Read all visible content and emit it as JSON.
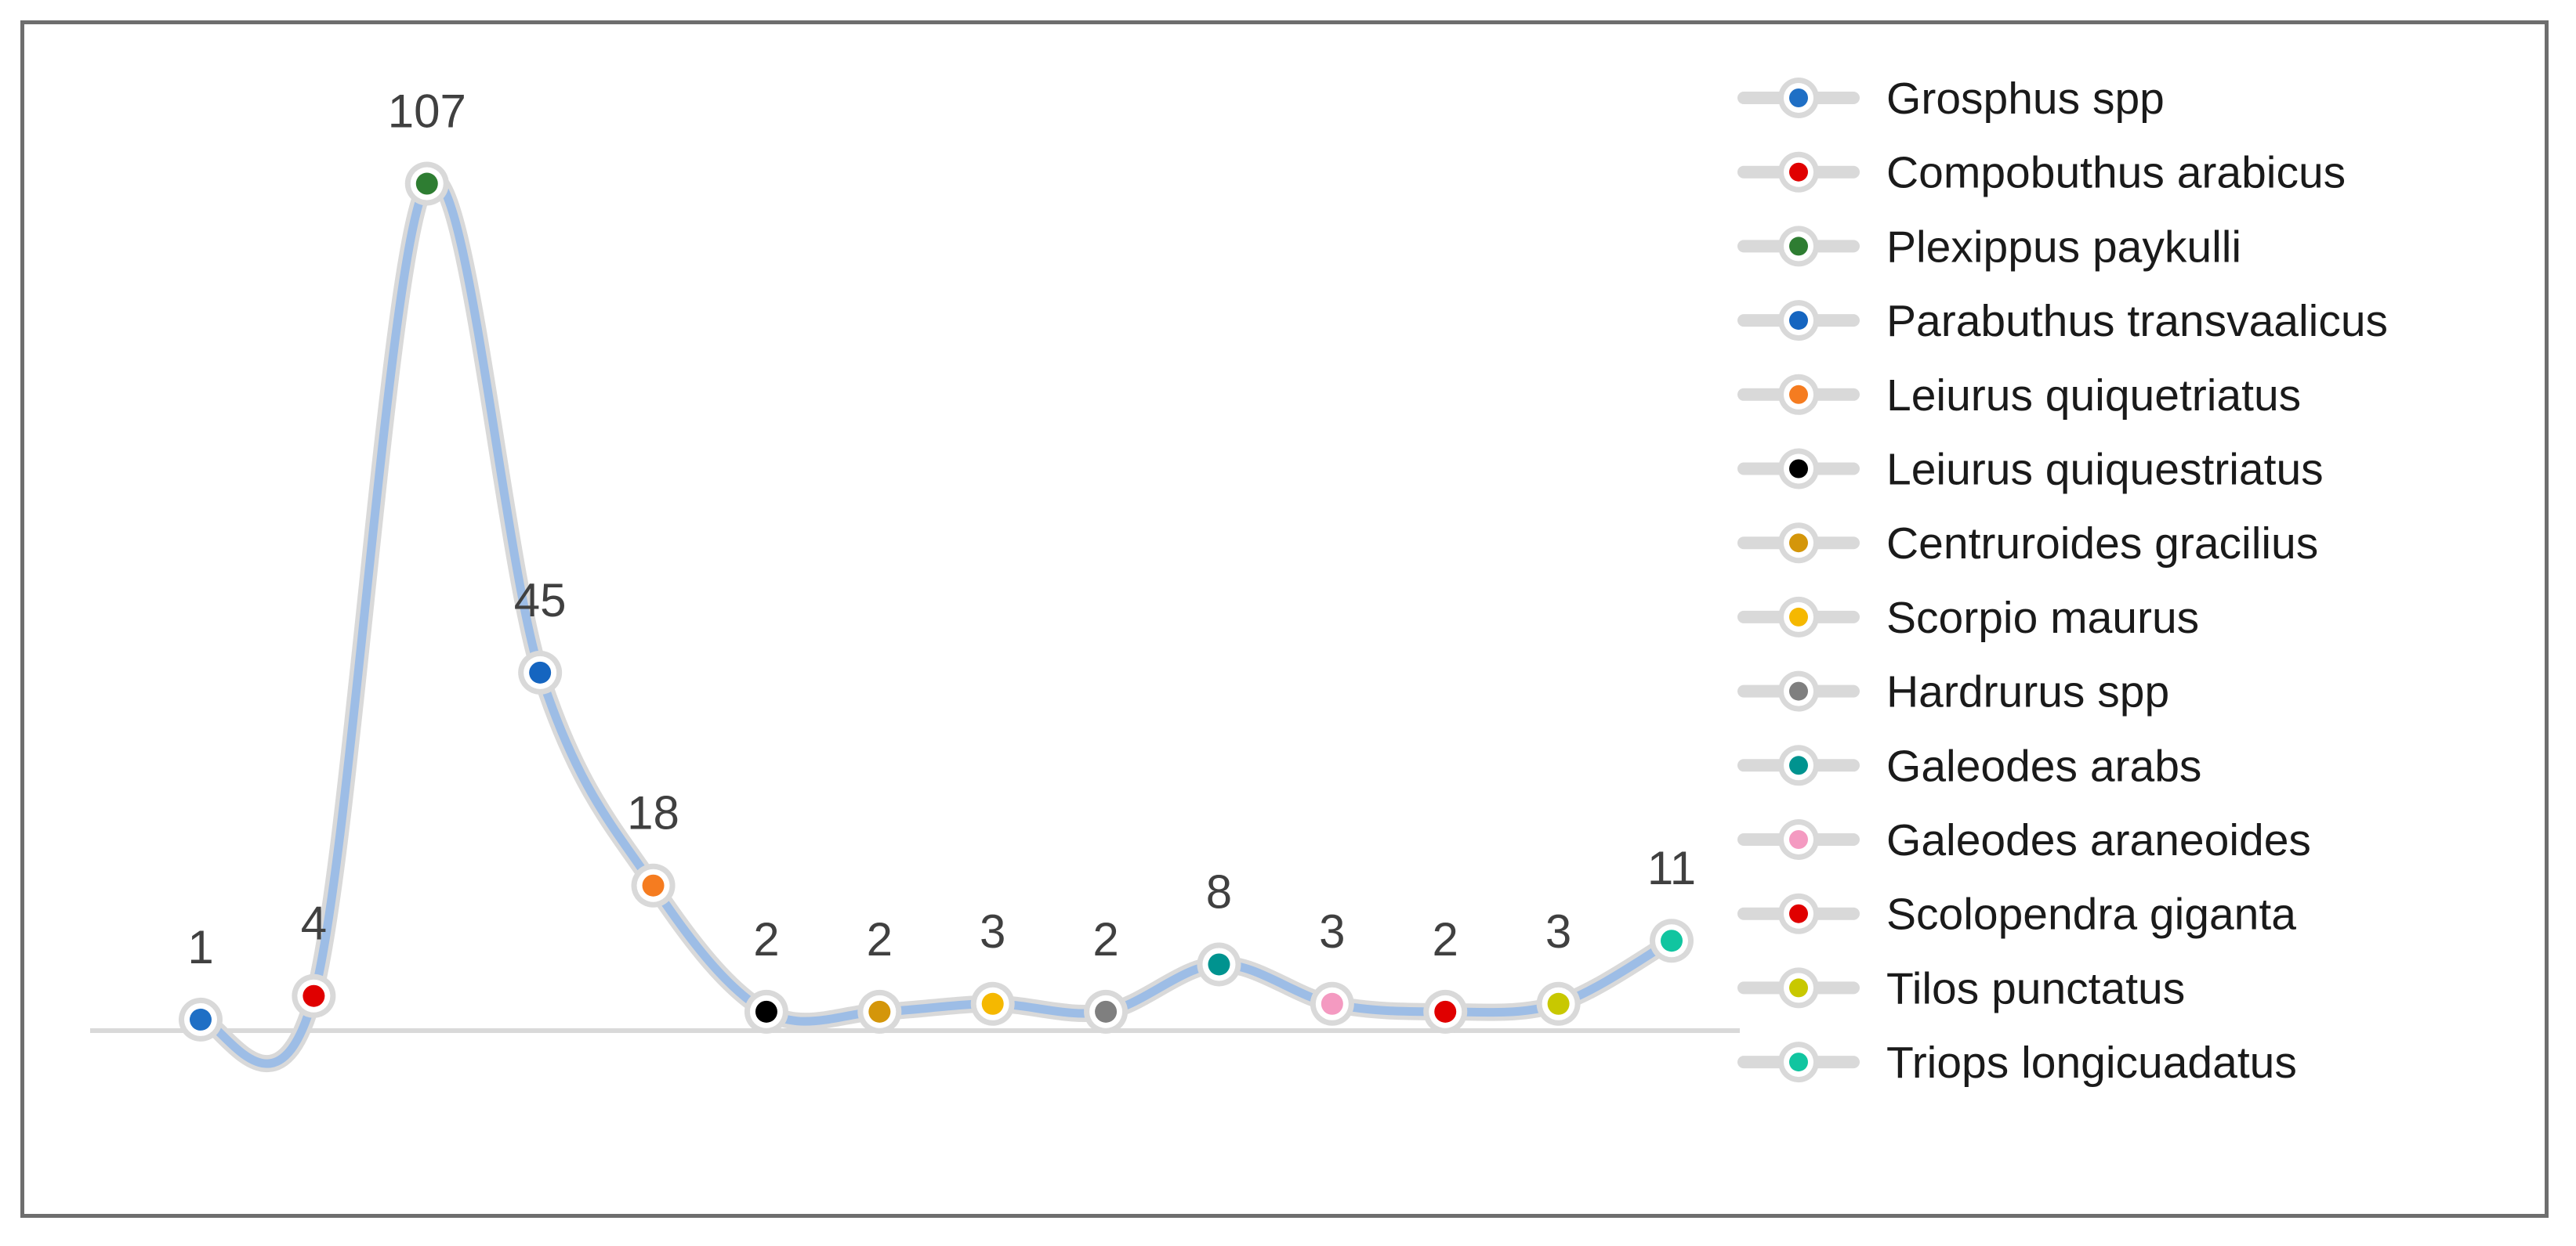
{
  "chart_data": {
    "type": "line",
    "smooth": true,
    "categories": [
      "Grosphus spp",
      "Compobuthus arabicus",
      "Plexippus paykulli",
      "Parabuthus transvaalicus",
      "Leiurus quiquetriatus",
      "Leiurus quiquestriatus",
      "Centruroides gracilius",
      "Scorpio maurus",
      "Hardrurus spp",
      "Galeodes arabs",
      "Galeodes araneoides",
      "Scolopendra giganta",
      "Tilos punctatus",
      "Triops longicuadatus"
    ],
    "values": [
      1,
      4,
      107,
      45,
      18,
      2,
      2,
      3,
      2,
      8,
      3,
      2,
      3,
      11
    ],
    "data_labels": [
      "1",
      "4",
      "107",
      "45",
      "18",
      "2",
      "2",
      "3",
      "2",
      "8",
      "3",
      "2",
      "3",
      "11"
    ],
    "point_colors": [
      "#1f6fc5",
      "#e00000",
      "#2e7d32",
      "#1565c0",
      "#f57c20",
      "#000000",
      "#d4960a",
      "#f5b800",
      "#7f7f7f",
      "#00938f",
      "#f49ac1",
      "#e00000",
      "#c8c800",
      "#11c5a0"
    ],
    "line_color": "#9dbde6",
    "halo_color": "#d9d9d9",
    "legend_position": "right",
    "title": "",
    "xlabel": "",
    "ylabel": "",
    "grid": false
  }
}
